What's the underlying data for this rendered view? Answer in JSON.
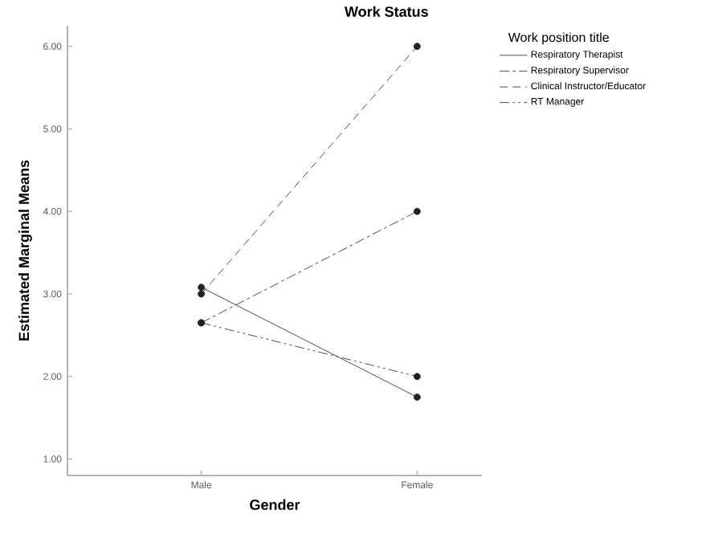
{
  "chart_data": {
    "type": "line",
    "title": "Work Status",
    "xlabel": "Gender",
    "ylabel": "Estimated Marginal Means",
    "legend_title": "Work position title",
    "categories": [
      "Male",
      "Female"
    ],
    "series": [
      {
        "name": "Respiratory Therapist",
        "color": "#222222",
        "line_style": "solid",
        "values": [
          3.08,
          1.75
        ]
      },
      {
        "name": "Respiratory Supervisor",
        "color": "#222222",
        "line_style": "dashdot",
        "values": [
          2.65,
          4.0
        ]
      },
      {
        "name": "Clinical Instructor/Educator",
        "color": "#222222",
        "line_style": "dashed",
        "values": [
          3.0,
          6.0
        ]
      },
      {
        "name": "RT Manager",
        "color": "#222222",
        "line_style": "dashdotdot",
        "values": [
          2.65,
          2.0
        ]
      }
    ],
    "ylim": [
      0.8,
      6.25
    ],
    "yticks": [
      {
        "value": 1,
        "label": "1.00"
      },
      {
        "value": 2,
        "label": "2.00"
      },
      {
        "value": 3,
        "label": "3.00"
      },
      {
        "value": 4,
        "label": "4.00"
      },
      {
        "value": 5,
        "label": "5.00"
      },
      {
        "value": 6,
        "label": "6.00"
      }
    ],
    "marker": "circle",
    "legend": "top right",
    "grid": false
  }
}
